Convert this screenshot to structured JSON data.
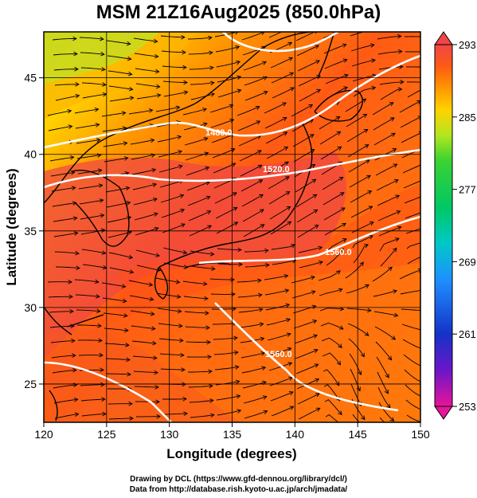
{
  "title": "MSM 21Z16Aug2025 (850.0hPa)",
  "axes": {
    "xlabel": "Longitude (degrees)",
    "ylabel": "Latitude (degrees)",
    "x_range": [
      120,
      150
    ],
    "y_range": [
      22.5,
      48
    ],
    "x_ticks": [
      "120",
      "125",
      "130",
      "135",
      "140",
      "145",
      "150"
    ],
    "y_ticks": [
      "25",
      "30",
      "35",
      "40",
      "45"
    ]
  },
  "colorbar": {
    "ticks": [
      "293",
      "285",
      "277",
      "269",
      "261",
      "253"
    ],
    "min": 253,
    "max": 293,
    "colors": [
      "#e8149a",
      "#6b16c8",
      "#1432c8",
      "#1e90ff",
      "#00c8c8",
      "#00c864",
      "#3cd232",
      "#b4e61e",
      "#ffd200",
      "#ff9600",
      "#ff5a14",
      "#f04646"
    ]
  },
  "contours": [
    {
      "label": "1480.0"
    },
    {
      "label": "1520.0"
    },
    {
      "label": "1560.0"
    },
    {
      "label": "1560.0"
    }
  ],
  "footer": {
    "line1": "Drawing by DCL (https://www.gfd-dennou.org/library/dcl/)",
    "line2": "Data from http://database.rish.kyoto-u.ac.jp/arch/jmadata/"
  },
  "colors": {
    "warm_core": "#f04646",
    "warm": "#ff5a14",
    "mid": "#ff9600",
    "cool": "#b4e61e",
    "contour": "#ffffff"
  }
}
